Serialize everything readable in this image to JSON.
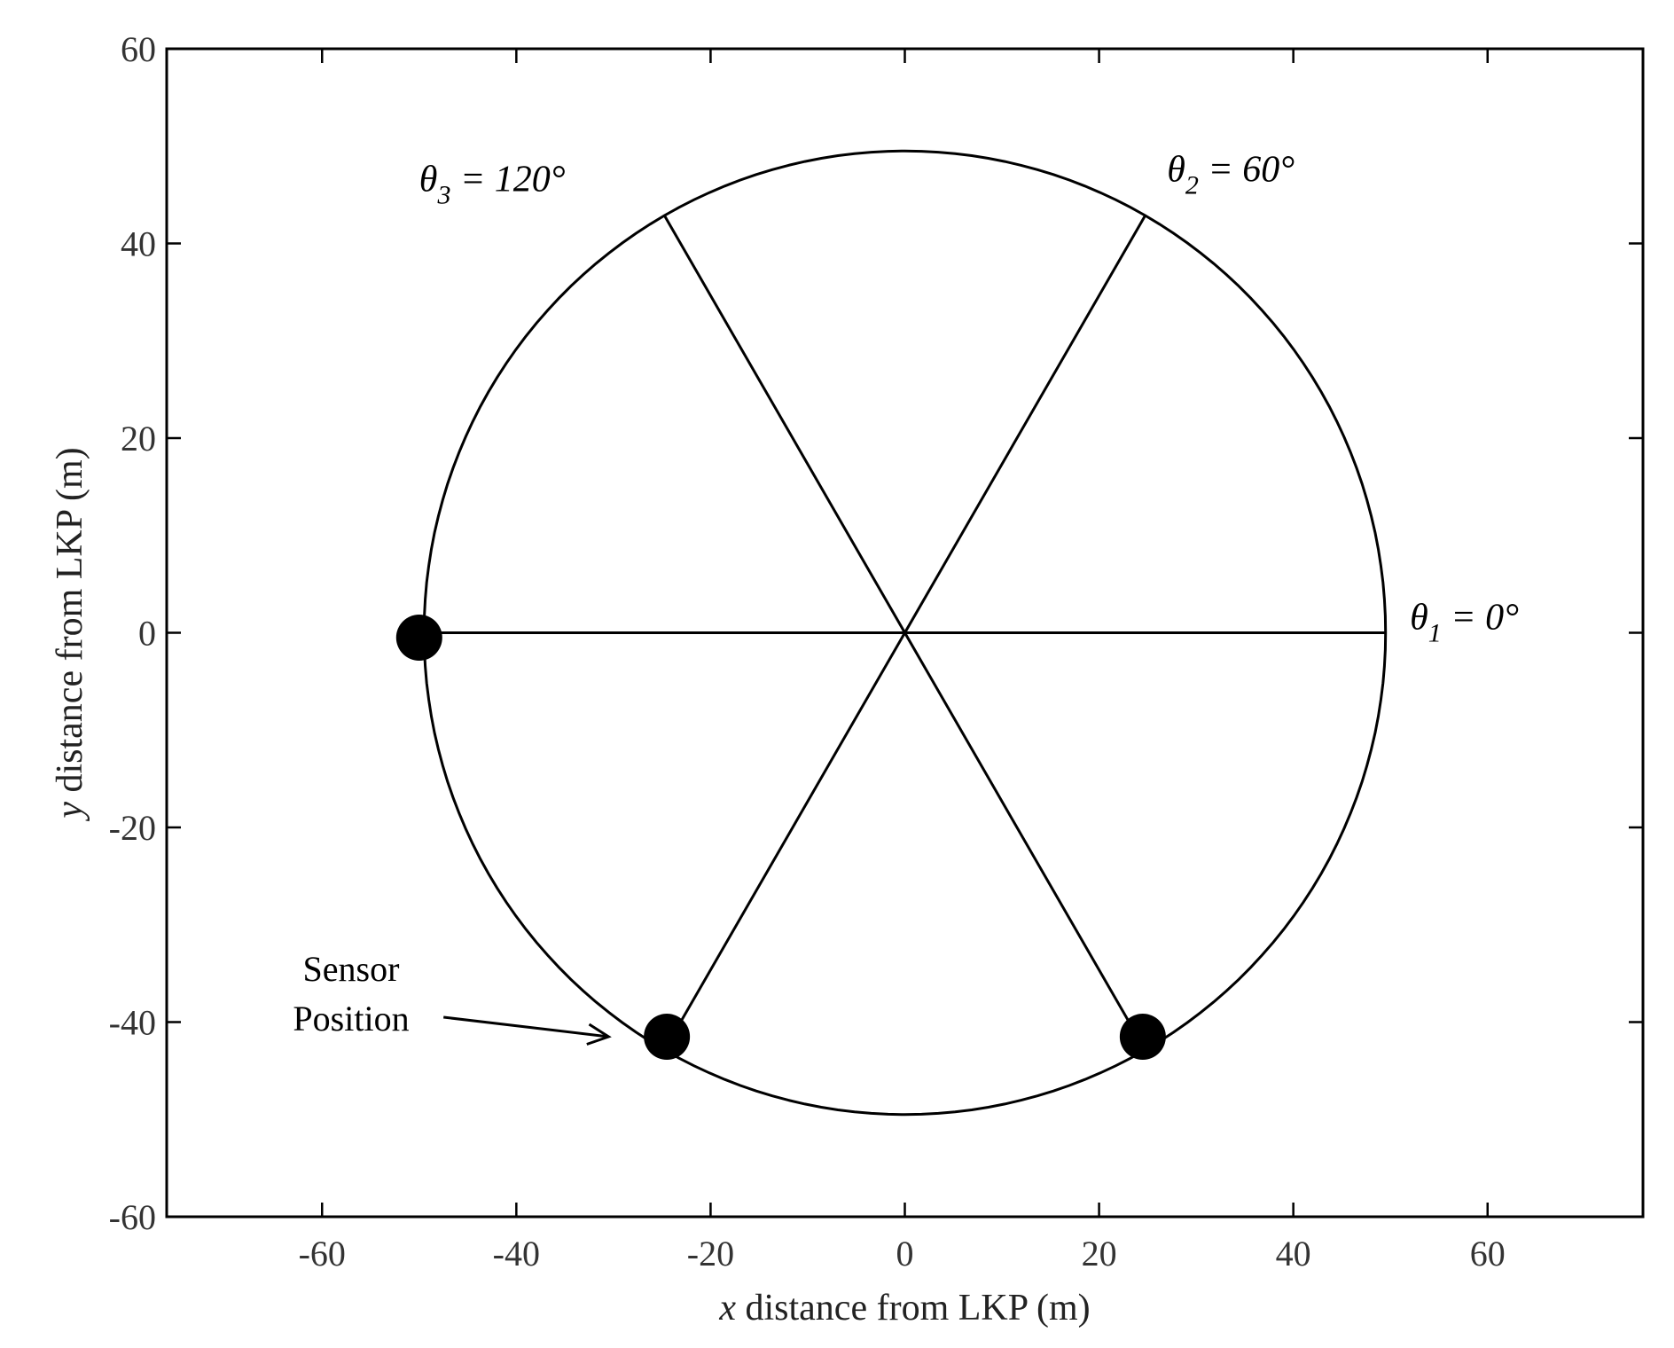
{
  "chart_data": {
    "type": "scatter",
    "title": "",
    "xlabel_var": "x",
    "xlabel_rest": " distance from LKP (m)",
    "ylabel_var": "y",
    "ylabel_rest": " distance from LKP (m)",
    "xlim": [
      -76,
      76
    ],
    "ylim": [
      -60,
      60
    ],
    "xticks": [
      -60,
      -40,
      -20,
      0,
      20,
      40,
      60
    ],
    "yticks": [
      -60,
      -40,
      -20,
      0,
      20,
      40,
      60
    ],
    "grid": false,
    "circle": {
      "center": [
        0,
        0
      ],
      "radius": 49.5
    },
    "spoke_angles_deg": [
      0,
      60,
      120
    ],
    "theta_labels": [
      {
        "sym": "θ",
        "sub": "1",
        "text": " = 0°",
        "x": 52,
        "y": 0
      },
      {
        "sym": "θ",
        "sub": "2",
        "text": " = 60°",
        "x": 27,
        "y": 46
      },
      {
        "sym": "θ",
        "sub": "3",
        "text": " = 120°",
        "x": -50,
        "y": 45
      }
    ],
    "sensors": [
      {
        "x": -50,
        "y": -0.5
      },
      {
        "x": -24.5,
        "y": -41.5
      },
      {
        "x": 24.5,
        "y": -41.5
      }
    ],
    "annotation": {
      "line1": "Sensor",
      "line2": "Position",
      "arrow_from": [
        -47.5,
        -39.5
      ],
      "arrow_to": [
        -30.5,
        -41.5
      ]
    }
  }
}
